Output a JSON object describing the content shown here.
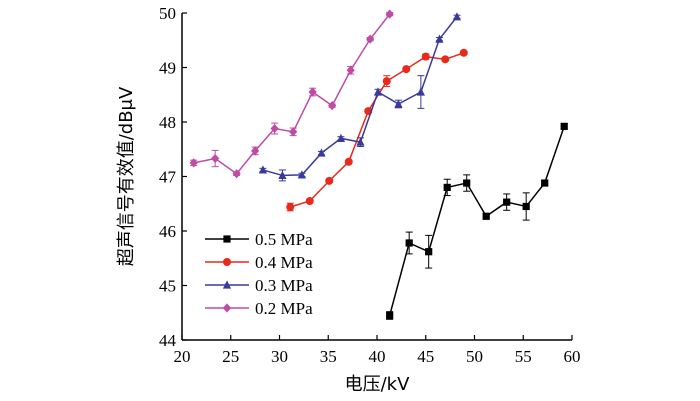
{
  "chart_data": {
    "type": "line",
    "xlabel": "电压/kV",
    "ylabel": "超声信号有效值/dBμV",
    "xlim": [
      20,
      60
    ],
    "ylim": [
      44,
      50
    ],
    "xticks": [
      20,
      25,
      30,
      35,
      40,
      45,
      50,
      55,
      60
    ],
    "yticks": [
      44,
      45,
      46,
      47,
      48,
      49,
      50
    ],
    "grid": false,
    "legend_position": "bottom-left",
    "series": [
      {
        "name": "0.5 MPa",
        "color": "#000000",
        "marker": "square",
        "x": [
          41.3,
          43.3,
          45.3,
          47.2,
          49.2,
          51.2,
          53.3,
          55.3,
          57.2,
          59.2
        ],
        "y": [
          44.45,
          45.78,
          45.62,
          46.8,
          46.88,
          46.27,
          46.53,
          46.45,
          46.88,
          47.92
        ],
        "err": [
          0.07,
          0.2,
          0.3,
          0.15,
          0.15,
          0.05,
          0.15,
          0.25,
          0.05,
          0.05
        ]
      },
      {
        "name": "0.4 MPa",
        "color": "#e8291c",
        "marker": "circle",
        "x": [
          31.1,
          33.1,
          35.1,
          37.1,
          39.1,
          41.0,
          43.0,
          45.0,
          47.0,
          48.9
        ],
        "y": [
          46.44,
          46.55,
          46.92,
          47.27,
          48.2,
          48.75,
          48.97,
          49.2,
          49.15,
          49.27
        ],
        "err": [
          0.07,
          0.03,
          0.03,
          0.03,
          0.03,
          0.1,
          0.03,
          0.05,
          0.03,
          0.03
        ]
      },
      {
        "name": "0.3 MPa",
        "color": "#3a3a9c",
        "marker": "triangle",
        "x": [
          28.3,
          30.3,
          32.3,
          34.3,
          36.3,
          38.3,
          40.1,
          42.2,
          44.5,
          46.4,
          48.2
        ],
        "y": [
          47.12,
          47.02,
          47.03,
          47.43,
          47.7,
          47.63,
          48.55,
          48.33,
          48.55,
          49.52,
          49.93
        ],
        "err": [
          0.03,
          0.1,
          0.03,
          0.03,
          0.03,
          0.08,
          0.05,
          0.07,
          0.3,
          0.03,
          0.03
        ]
      },
      {
        "name": "0.2 MPa",
        "color": "#c04ba4",
        "marker": "diamond",
        "x": [
          21.2,
          23.4,
          25.6,
          27.5,
          29.5,
          31.4,
          33.4,
          35.4,
          37.3,
          39.3,
          41.3
        ],
        "y": [
          47.25,
          47.33,
          47.05,
          47.47,
          47.88,
          47.82,
          48.55,
          48.3,
          48.95,
          49.52,
          49.98
        ],
        "err": [
          0.05,
          0.15,
          0.03,
          0.07,
          0.1,
          0.07,
          0.07,
          0.03,
          0.07,
          0.03,
          0.03
        ]
      }
    ]
  }
}
